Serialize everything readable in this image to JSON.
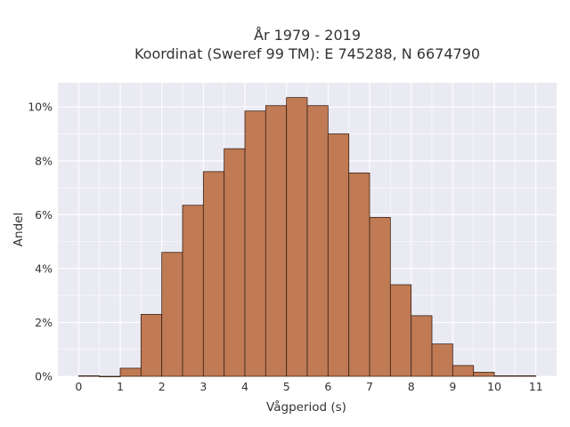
{
  "chart_data": {
    "type": "bar",
    "title_line1": "År 1979 - 2019",
    "title_line2": "Koordinat (Sweref 99 TM): E 745288, N 6674790",
    "xlabel": "Vågperiod (s)",
    "ylabel": "Andel",
    "x_ticks": [
      "0",
      "1",
      "2",
      "3",
      "4",
      "5",
      "6",
      "7",
      "8",
      "9",
      "10",
      "11"
    ],
    "y_ticks": [
      "0%",
      "2%",
      "4%",
      "6%",
      "8%",
      "10%"
    ],
    "xlim": [
      -0.5,
      11.5
    ],
    "ylim": [
      0,
      10.9
    ],
    "bin_width": 0.5,
    "bars": [
      {
        "x": 0.25,
        "value": 0.02
      },
      {
        "x": 0.75,
        "value": 0.0
      },
      {
        "x": 1.25,
        "value": 0.3
      },
      {
        "x": 1.75,
        "value": 2.3
      },
      {
        "x": 2.25,
        "value": 4.6
      },
      {
        "x": 2.75,
        "value": 6.35
      },
      {
        "x": 3.25,
        "value": 7.6
      },
      {
        "x": 3.75,
        "value": 8.45
      },
      {
        "x": 4.25,
        "value": 9.85
      },
      {
        "x": 4.75,
        "value": 10.05
      },
      {
        "x": 5.25,
        "value": 10.35
      },
      {
        "x": 5.75,
        "value": 10.05
      },
      {
        "x": 6.25,
        "value": 9.0
      },
      {
        "x": 6.75,
        "value": 7.55
      },
      {
        "x": 7.25,
        "value": 5.9
      },
      {
        "x": 7.75,
        "value": 3.4
      },
      {
        "x": 8.25,
        "value": 2.25
      },
      {
        "x": 8.75,
        "value": 1.2
      },
      {
        "x": 9.25,
        "value": 0.4
      },
      {
        "x": 9.75,
        "value": 0.15
      },
      {
        "x": 10.25,
        "value": 0.02
      },
      {
        "x": 10.75,
        "value": 0.02
      }
    ],
    "bar_color": "#c07a54",
    "bar_edge_color": "#3a2418",
    "plot_bg_color": "#eaeaf2",
    "grid_color": "#ffffff",
    "grid": true,
    "legend": false
  }
}
